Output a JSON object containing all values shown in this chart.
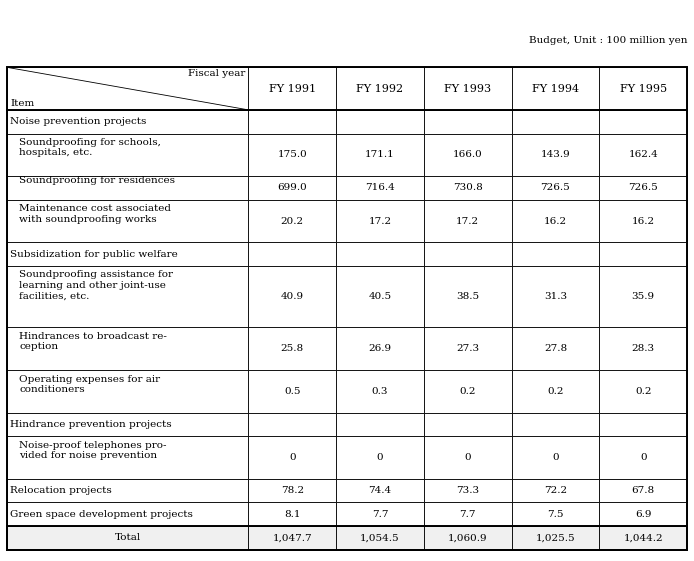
{
  "budget_note": "Budget, Unit : 100 million yen",
  "columns": [
    "FY 1991",
    "FY 1992",
    "FY 1993",
    "FY 1994",
    "FY 1995"
  ],
  "rows": [
    {
      "label": "Noise prevention projects",
      "type": "header",
      "values": [
        "",
        "",
        "",
        "",
        ""
      ]
    },
    {
      "label": "Soundproofing for schools,\nhospitals, etc.",
      "type": "subitem",
      "values": [
        "175.0",
        "171.1",
        "166.0",
        "143.9",
        "162.4"
      ]
    },
    {
      "label": "Soundproofing for residences",
      "type": "subitem",
      "values": [
        "699.0",
        "716.4",
        "730.8",
        "726.5",
        "726.5"
      ]
    },
    {
      "label": "Maintenance cost associated\nwith soundproofing works",
      "type": "subitem",
      "values": [
        "20.2",
        "17.2",
        "17.2",
        "16.2",
        "16.2"
      ]
    },
    {
      "label": "Subsidization for public welfare",
      "type": "header",
      "values": [
        "",
        "",
        "",
        "",
        ""
      ]
    },
    {
      "label": "Soundproofing assistance for\nlearning and other joint-use\nfacilities, etc.",
      "type": "subitem",
      "values": [
        "40.9",
        "40.5",
        "38.5",
        "31.3",
        "35.9"
      ]
    },
    {
      "label": "Hindrances to broadcast re-\nception",
      "type": "subitem",
      "values": [
        "25.8",
        "26.9",
        "27.3",
        "27.8",
        "28.3"
      ]
    },
    {
      "label": "Operating expenses for air\nconditioners",
      "type": "subitem",
      "values": [
        "0.5",
        "0.3",
        "0.2",
        "0.2",
        "0.2"
      ]
    },
    {
      "label": "Hindrance prevention projects",
      "type": "header",
      "values": [
        "",
        "",
        "",
        "",
        ""
      ]
    },
    {
      "label": "Noise-proof telephones pro-\nvided for noise prevention",
      "type": "subitem",
      "values": [
        "0",
        "0",
        "0",
        "0",
        "0"
      ]
    },
    {
      "label": "Relocation projects",
      "type": "item",
      "values": [
        "78.2",
        "74.4",
        "73.3",
        "72.2",
        "67.8"
      ]
    },
    {
      "label": "Green space development projects",
      "type": "item",
      "values": [
        "8.1",
        "7.7",
        "7.7",
        "7.5",
        "6.9"
      ]
    },
    {
      "label": "Total",
      "type": "total",
      "values": [
        "1,047.7",
        "1,054.5",
        "1,060.9",
        "1,025.5",
        "1,044.2"
      ]
    }
  ],
  "fig_width": 6.94,
  "fig_height": 5.61,
  "dpi": 100,
  "bg_color": "#ffffff",
  "border_color": "#000000",
  "note_fontsize": 7.5,
  "col_header_fontsize": 8.0,
  "data_fontsize": 7.5,
  "label_fontsize": 7.5,
  "lw_thick": 1.4,
  "lw_thin": 0.6
}
